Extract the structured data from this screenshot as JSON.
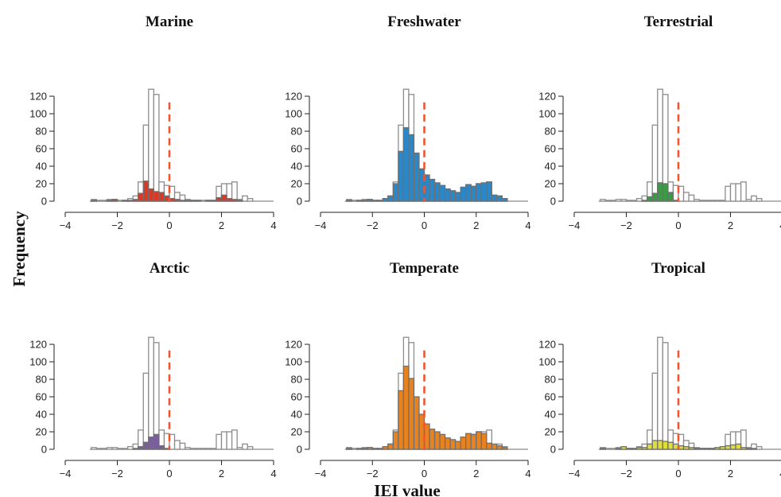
{
  "figure": {
    "ylabel": "Frequency",
    "xlabel": "IEI value"
  },
  "chart_data": [
    {
      "type": "bar",
      "title": "Marine",
      "xlabel": "",
      "ylabel": "",
      "xlim": [
        -4,
        4
      ],
      "ylim": [
        0,
        125
      ],
      "xticks": [
        -4,
        -2,
        0,
        2,
        4
      ],
      "yticks": [
        0,
        20,
        40,
        60,
        80,
        100,
        120
      ],
      "bin_width": 0.2,
      "bin_start": -3.0,
      "reference_line_x": 0,
      "fill_color": "#d93a26",
      "series": [
        {
          "values": [
            2,
            1,
            1,
            2,
            2,
            1,
            1,
            3,
            6,
            22,
            87,
            128,
            122,
            22,
            18,
            17,
            10,
            7,
            2,
            1,
            1,
            1,
            1,
            1,
            17,
            20,
            20,
            22,
            2,
            6,
            3,
            0
          ]
        },
        {
          "values": [
            1,
            0,
            0,
            1,
            2,
            0,
            1,
            1,
            2,
            9,
            23,
            14,
            11,
            10,
            6,
            3,
            2,
            1,
            1,
            1,
            1,
            0,
            1,
            1,
            4,
            7,
            3,
            2,
            1,
            0,
            0,
            0
          ]
        }
      ]
    },
    {
      "type": "bar",
      "title": "Freshwater",
      "xlabel": "",
      "ylabel": "",
      "xlim": [
        -4,
        4
      ],
      "ylim": [
        0,
        125
      ],
      "xticks": [
        -4,
        -2,
        0,
        2,
        4
      ],
      "yticks": [
        0,
        20,
        40,
        60,
        80,
        100,
        120
      ],
      "bin_width": 0.2,
      "bin_start": -3.0,
      "reference_line_x": 0,
      "fill_color": "#2a87c8",
      "series": [
        {
          "values": [
            2,
            1,
            1,
            2,
            2,
            1,
            1,
            3,
            6,
            22,
            87,
            128,
            122,
            22,
            18,
            17,
            10,
            7,
            2,
            1,
            1,
            1,
            1,
            1,
            17,
            20,
            20,
            22,
            2,
            6,
            3,
            0
          ]
        },
        {
          "values": [
            1,
            0,
            1,
            1,
            2,
            1,
            1,
            3,
            6,
            20,
            57,
            84,
            76,
            55,
            37,
            30,
            25,
            21,
            18,
            14,
            12,
            10,
            16,
            19,
            17,
            20,
            21,
            22,
            7,
            6,
            3,
            0
          ]
        }
      ]
    },
    {
      "type": "bar",
      "title": "Terrestrial",
      "xlabel": "",
      "ylabel": "",
      "xlim": [
        -4,
        4
      ],
      "ylim": [
        0,
        125
      ],
      "xticks": [
        -4,
        -2,
        0,
        2,
        4
      ],
      "yticks": [
        0,
        20,
        40,
        60,
        80,
        100,
        120
      ],
      "bin_width": 0.2,
      "bin_start": -3.0,
      "reference_line_x": 0,
      "fill_color": "#3b9a45",
      "series": [
        {
          "values": [
            2,
            1,
            1,
            2,
            2,
            1,
            1,
            3,
            6,
            22,
            87,
            128,
            122,
            22,
            18,
            17,
            10,
            7,
            2,
            1,
            1,
            1,
            1,
            1,
            17,
            20,
            20,
            22,
            2,
            6,
            3,
            0
          ]
        },
        {
          "values": [
            0,
            0,
            0,
            0,
            0,
            0,
            0,
            0,
            1,
            5,
            9,
            21,
            20,
            10,
            1,
            0,
            0,
            0,
            0,
            0,
            0,
            0,
            0,
            0,
            0,
            0,
            0,
            0,
            0,
            0,
            0,
            0
          ]
        }
      ]
    },
    {
      "type": "bar",
      "title": "Arctic",
      "xlabel": "",
      "ylabel": "",
      "xlim": [
        -4,
        4
      ],
      "ylim": [
        0,
        125
      ],
      "xticks": [
        -4,
        -2,
        0,
        2,
        4
      ],
      "yticks": [
        0,
        20,
        40,
        60,
        80,
        100,
        120
      ],
      "bin_width": 0.2,
      "bin_start": -3.0,
      "reference_line_x": 0,
      "fill_color": "#7b5ea1",
      "series": [
        {
          "values": [
            2,
            1,
            1,
            2,
            2,
            1,
            1,
            3,
            6,
            22,
            87,
            128,
            122,
            22,
            18,
            17,
            10,
            7,
            2,
            1,
            1,
            1,
            1,
            1,
            17,
            20,
            20,
            22,
            2,
            6,
            3,
            0
          ]
        },
        {
          "values": [
            0,
            0,
            0,
            0,
            0,
            0,
            0,
            0,
            1,
            3,
            8,
            14,
            17,
            4,
            1,
            0,
            0,
            0,
            0,
            0,
            0,
            0,
            0,
            0,
            0,
            0,
            0,
            0,
            0,
            0,
            0,
            0
          ]
        }
      ]
    },
    {
      "type": "bar",
      "title": "Temperate",
      "xlabel": "",
      "ylabel": "",
      "xlim": [
        -4,
        4
      ],
      "ylim": [
        0,
        125
      ],
      "xticks": [
        -4,
        -2,
        0,
        2,
        4
      ],
      "yticks": [
        0,
        20,
        40,
        60,
        80,
        100,
        120
      ],
      "bin_width": 0.2,
      "bin_start": -3.0,
      "reference_line_x": 0,
      "fill_color": "#e8821e",
      "series": [
        {
          "values": [
            2,
            1,
            1,
            2,
            2,
            1,
            1,
            3,
            6,
            22,
            87,
            128,
            122,
            22,
            18,
            17,
            10,
            7,
            2,
            1,
            1,
            1,
            1,
            1,
            17,
            20,
            20,
            22,
            2,
            6,
            3,
            0
          ]
        },
        {
          "values": [
            1,
            0,
            1,
            1,
            2,
            1,
            1,
            3,
            6,
            20,
            67,
            95,
            81,
            60,
            40,
            29,
            23,
            20,
            17,
            13,
            11,
            9,
            14,
            18,
            17,
            20,
            18,
            7,
            6,
            4,
            2,
            0
          ]
        }
      ]
    },
    {
      "type": "bar",
      "title": "Tropical",
      "xlabel": "",
      "ylabel": "",
      "xlim": [
        -4,
        4
      ],
      "ylim": [
        0,
        125
      ],
      "xticks": [
        -4,
        -2,
        0,
        2,
        4
      ],
      "yticks": [
        0,
        20,
        40,
        60,
        80,
        100,
        120
      ],
      "bin_width": 0.2,
      "bin_start": -3.0,
      "reference_line_x": 0,
      "fill_color": "#dede3a",
      "series": [
        {
          "values": [
            2,
            1,
            1,
            2,
            2,
            1,
            1,
            3,
            6,
            22,
            87,
            128,
            122,
            22,
            18,
            17,
            10,
            7,
            2,
            1,
            1,
            1,
            1,
            1,
            17,
            20,
            20,
            22,
            2,
            6,
            3,
            0
          ]
        },
        {
          "values": [
            1,
            0,
            0,
            1,
            3,
            1,
            1,
            2,
            2,
            6,
            10,
            10,
            9,
            8,
            6,
            4,
            3,
            2,
            1,
            1,
            1,
            1,
            2,
            3,
            4,
            5,
            6,
            2,
            1,
            1,
            0,
            0
          ]
        }
      ]
    }
  ]
}
